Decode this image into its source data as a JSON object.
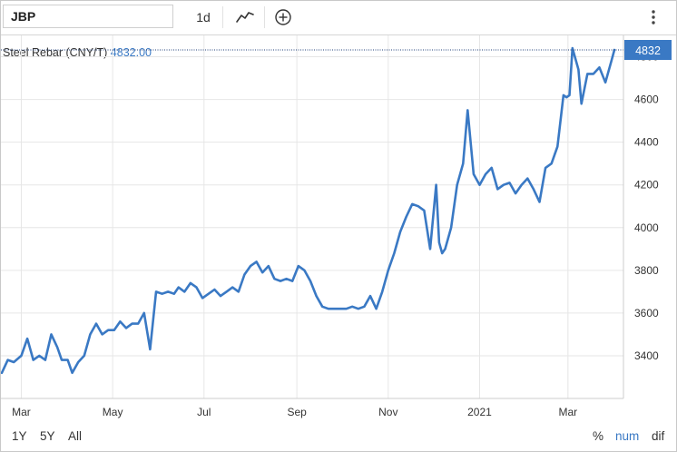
{
  "toolbar": {
    "symbol_value": "JBP",
    "interval_label": "1d",
    "chart_type_icon": "line-chart-icon",
    "add_icon": "plus-circle-icon",
    "menu_icon": "vertical-dots-icon"
  },
  "header": {
    "series_name": "Steel Rebar (CNY/T)",
    "series_value": "4832.00"
  },
  "colors": {
    "line": "#3a79c4",
    "grid": "#e6e6e6",
    "last_price_bg": "#3a79c4",
    "last_price_text": "#ffffff"
  },
  "chart_data": {
    "type": "line",
    "title": "",
    "xlabel": "",
    "ylabel": "",
    "ylim": [
      3200,
      4900
    ],
    "y_ticks": [
      3400,
      3600,
      3800,
      4000,
      4200,
      4400,
      4600,
      4800
    ],
    "grid": true,
    "last_price": 4832,
    "last_price_label": "4832",
    "x_ticks": [
      {
        "label": "Mar",
        "date": "2020-03-01"
      },
      {
        "label": "May",
        "date": "2020-05-01"
      },
      {
        "label": "Jul",
        "date": "2020-07-01"
      },
      {
        "label": "Sep",
        "date": "2020-09-01"
      },
      {
        "label": "Nov",
        "date": "2020-11-01"
      },
      {
        "label": "2021",
        "date": "2021-01-01"
      },
      {
        "label": "Mar",
        "date": "2021-03-01"
      }
    ],
    "series": [
      {
        "x": [
          "2020-02-17",
          "2020-02-21",
          "2020-02-25",
          "2020-03-01",
          "2020-03-05",
          "2020-03-09",
          "2020-03-13",
          "2020-03-17",
          "2020-03-21",
          "2020-03-25",
          "2020-03-28",
          "2020-04-01",
          "2020-04-04",
          "2020-04-08",
          "2020-04-12",
          "2020-04-16",
          "2020-04-20",
          "2020-04-24",
          "2020-04-28",
          "2020-05-02",
          "2020-05-06",
          "2020-05-10",
          "2020-05-14",
          "2020-05-18",
          "2020-05-22",
          "2020-05-26",
          "2020-05-30",
          "2020-06-03",
          "2020-06-07",
          "2020-06-11",
          "2020-06-14",
          "2020-06-18",
          "2020-06-22",
          "2020-06-26",
          "2020-06-30",
          "2020-07-04",
          "2020-07-08",
          "2020-07-12",
          "2020-07-16",
          "2020-07-20",
          "2020-07-24",
          "2020-07-28",
          "2020-08-01",
          "2020-08-05",
          "2020-08-09",
          "2020-08-13",
          "2020-08-17",
          "2020-08-21",
          "2020-08-25",
          "2020-08-29",
          "2020-09-02",
          "2020-09-06",
          "2020-09-10",
          "2020-09-14",
          "2020-09-18",
          "2020-09-22",
          "2020-09-26",
          "2020-09-30",
          "2020-10-04",
          "2020-10-08",
          "2020-10-12",
          "2020-10-16",
          "2020-10-20",
          "2020-10-24",
          "2020-10-28",
          "2020-11-01",
          "2020-11-05",
          "2020-11-09",
          "2020-11-13",
          "2020-11-17",
          "2020-11-21",
          "2020-11-25",
          "2020-11-29",
          "2020-12-03",
          "2020-12-05",
          "2020-12-07",
          "2020-12-09",
          "2020-12-13",
          "2020-12-17",
          "2020-12-21",
          "2020-12-24",
          "2020-12-28",
          "2021-01-01",
          "2021-01-05",
          "2021-01-09",
          "2021-01-13",
          "2021-01-17",
          "2021-01-21",
          "2021-01-25",
          "2021-01-29",
          "2021-02-02",
          "2021-02-06",
          "2021-02-10",
          "2021-02-14",
          "2021-02-18",
          "2021-02-22",
          "2021-02-26",
          "2021-02-28",
          "2021-03-02",
          "2021-03-04",
          "2021-03-08",
          "2021-03-10",
          "2021-03-14",
          "2021-03-18",
          "2021-03-22",
          "2021-03-26",
          "2021-03-30",
          "2021-04-01"
        ],
        "y": [
          3320,
          3380,
          3370,
          3400,
          3480,
          3380,
          3400,
          3380,
          3500,
          3440,
          3380,
          3380,
          3320,
          3370,
          3400,
          3500,
          3550,
          3500,
          3520,
          3520,
          3560,
          3530,
          3550,
          3550,
          3600,
          3430,
          3700,
          3690,
          3700,
          3690,
          3720,
          3700,
          3740,
          3720,
          3670,
          3690,
          3710,
          3680,
          3700,
          3720,
          3700,
          3780,
          3820,
          3840,
          3790,
          3820,
          3760,
          3750,
          3760,
          3750,
          3820,
          3800,
          3750,
          3680,
          3630,
          3620,
          3620,
          3620,
          3620,
          3630,
          3620,
          3630,
          3680,
          3620,
          3700,
          3800,
          3880,
          3980,
          4050,
          4110,
          4100,
          4080,
          3900,
          4200,
          3930,
          3880,
          3900,
          4000,
          4200,
          4300,
          4550,
          4250,
          4200,
          4250,
          4280,
          4180,
          4200,
          4210,
          4160,
          4200,
          4230,
          4180,
          4120,
          4280,
          4300,
          4380,
          4620,
          4610,
          4620,
          4840,
          4740,
          4580,
          4720,
          4720,
          4750,
          4680,
          4780,
          4832
        ]
      }
    ]
  },
  "range_buttons": [
    "1Y",
    "5Y",
    "All"
  ],
  "mode_buttons": {
    "percent": "%",
    "num": "num",
    "dif": "dif",
    "active": "num"
  }
}
